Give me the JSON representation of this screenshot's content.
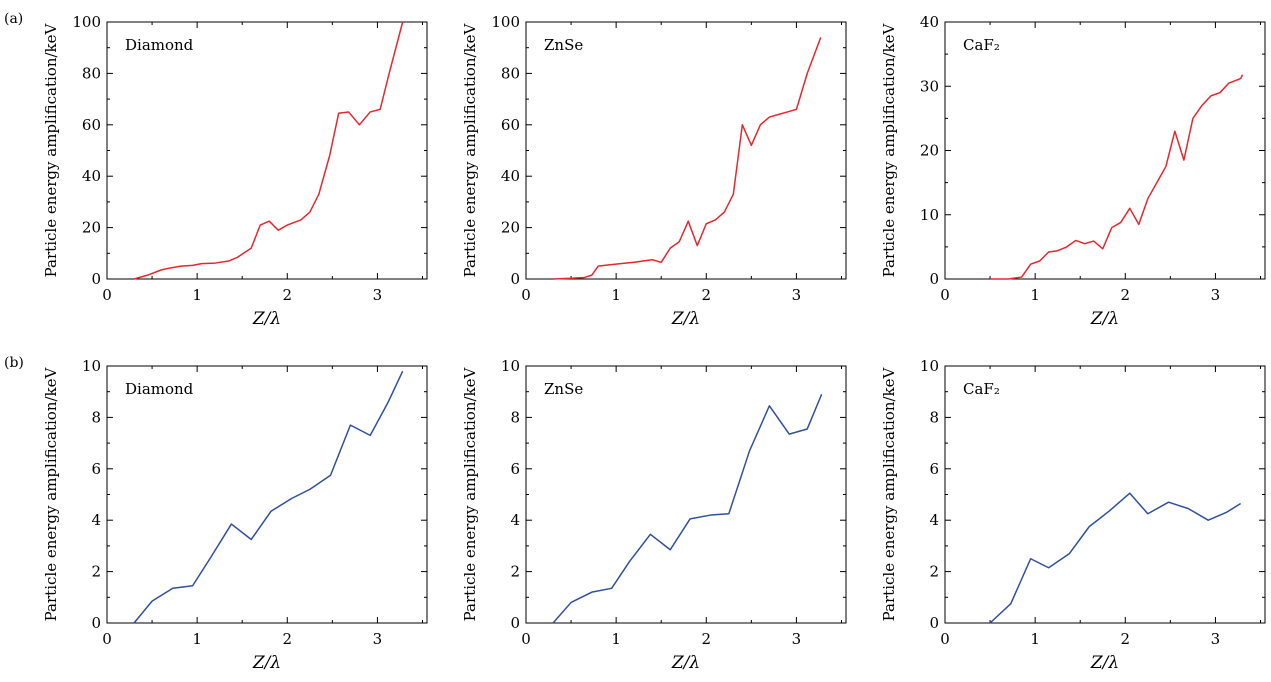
{
  "figure": {
    "row_labels": [
      "(a)",
      "(b)"
    ]
  },
  "colors": {
    "row_a": "#e8262e",
    "row_b": "#2f4f9f",
    "axis": "#000000"
  },
  "chart_data": [
    {
      "type": "line",
      "row": 0,
      "col": 0,
      "panel_label": "Diamond",
      "xlabel": "Z/λ",
      "ylabel": "Particle energy amplification/keV",
      "xlim": [
        0,
        3.55
      ],
      "ylim": [
        0,
        100
      ],
      "xticks": [
        0,
        1,
        2,
        3
      ],
      "yticks": [
        0,
        20,
        40,
        60,
        80,
        100
      ],
      "series": [
        {
          "color": "#e8262e",
          "x": [
            0.3,
            0.45,
            0.6,
            0.7,
            0.82,
            0.95,
            1.05,
            1.2,
            1.35,
            1.45,
            1.6,
            1.7,
            1.8,
            1.9,
            2.0,
            2.15,
            2.25,
            2.35,
            2.47,
            2.57,
            2.68,
            2.8,
            2.92,
            3.03,
            3.13,
            3.28
          ],
          "y": [
            0,
            1.5,
            3.5,
            4.3,
            5.0,
            5.3,
            6.0,
            6.2,
            7.0,
            8.5,
            12.0,
            21.0,
            22.5,
            19.0,
            21.0,
            23.0,
            26.0,
            33.0,
            48.0,
            64.5,
            65.0,
            60.0,
            65.0,
            66.0,
            80.0,
            100.0
          ]
        }
      ]
    },
    {
      "type": "line",
      "row": 0,
      "col": 1,
      "panel_label": "ZnSe",
      "xlabel": "Z/λ",
      "ylabel": "Particle energy amplification/keV",
      "xlim": [
        0,
        3.55
      ],
      "ylim": [
        0,
        100
      ],
      "xticks": [
        0,
        1,
        2,
        3
      ],
      "yticks": [
        0,
        20,
        40,
        60,
        80,
        100
      ],
      "series": [
        {
          "color": "#e8262e",
          "x": [
            0.3,
            0.5,
            0.65,
            0.73,
            0.8,
            0.92,
            1.05,
            1.2,
            1.3,
            1.4,
            1.5,
            1.6,
            1.7,
            1.8,
            1.9,
            2.0,
            2.1,
            2.2,
            2.3,
            2.4,
            2.5,
            2.6,
            2.7,
            2.8,
            2.9,
            3.0,
            3.12,
            3.27
          ],
          "y": [
            0,
            0.3,
            0.6,
            1.5,
            5.0,
            5.5,
            6.0,
            6.5,
            7.0,
            7.5,
            6.5,
            12.0,
            14.5,
            22.5,
            13.0,
            21.5,
            23.0,
            26.0,
            33.0,
            60.0,
            52.0,
            60.0,
            63.0,
            64.0,
            65.0,
            66.0,
            80.0,
            94.0
          ]
        }
      ]
    },
    {
      "type": "line",
      "row": 0,
      "col": 2,
      "panel_label": "CaF₂",
      "xlabel": "Z/λ",
      "ylabel": "Particle energy amplification/keV",
      "xlim": [
        0,
        3.55
      ],
      "ylim": [
        0,
        40
      ],
      "xticks": [
        0,
        1,
        2,
        3
      ],
      "yticks": [
        0,
        10,
        20,
        30,
        40
      ],
      "series": [
        {
          "color": "#e8262e",
          "x": [
            0.5,
            0.7,
            0.85,
            0.95,
            1.05,
            1.15,
            1.25,
            1.35,
            1.45,
            1.55,
            1.65,
            1.75,
            1.85,
            1.95,
            2.05,
            2.15,
            2.25,
            2.35,
            2.45,
            2.55,
            2.65,
            2.75,
            2.85,
            2.95,
            3.05,
            3.15,
            3.28,
            3.3
          ],
          "y": [
            0,
            0,
            0.3,
            2.3,
            2.8,
            4.2,
            4.4,
            5.0,
            6.0,
            5.5,
            5.9,
            4.7,
            8.0,
            8.8,
            11.0,
            8.5,
            12.5,
            15.0,
            17.5,
            23.0,
            18.5,
            25.0,
            27.0,
            28.5,
            29.0,
            30.5,
            31.2,
            31.8
          ]
        }
      ]
    },
    {
      "type": "line",
      "row": 1,
      "col": 0,
      "panel_label": "Diamond",
      "xlabel": "Z/λ",
      "ylabel": "Particle energy amplification/keV",
      "xlim": [
        0,
        3.55
      ],
      "ylim": [
        0,
        10
      ],
      "xticks": [
        0,
        1,
        2,
        3
      ],
      "yticks": [
        0,
        2,
        4,
        6,
        8,
        10
      ],
      "series": [
        {
          "color": "#2f4f9f",
          "x": [
            0.3,
            0.5,
            0.73,
            0.95,
            1.15,
            1.38,
            1.6,
            1.82,
            2.05,
            2.25,
            2.48,
            2.7,
            2.92,
            3.12,
            3.28
          ],
          "y": [
            0,
            0.85,
            1.35,
            1.45,
            2.55,
            3.85,
            3.25,
            4.35,
            4.85,
            5.2,
            5.75,
            7.7,
            7.3,
            8.6,
            9.8
          ]
        }
      ]
    },
    {
      "type": "line",
      "row": 1,
      "col": 1,
      "panel_label": "ZnSe",
      "xlabel": "Z/λ",
      "ylabel": "Particle energy amplification/keV",
      "xlim": [
        0,
        3.55
      ],
      "ylim": [
        0,
        10
      ],
      "xticks": [
        0,
        1,
        2,
        3
      ],
      "yticks": [
        0,
        2,
        4,
        6,
        8,
        10
      ],
      "series": [
        {
          "color": "#2f4f9f",
          "x": [
            0.3,
            0.5,
            0.73,
            0.95,
            1.15,
            1.38,
            1.6,
            1.82,
            2.05,
            2.25,
            2.48,
            2.7,
            2.92,
            3.12,
            3.28
          ],
          "y": [
            0,
            0.8,
            1.2,
            1.35,
            2.4,
            3.45,
            2.85,
            4.05,
            4.2,
            4.25,
            6.7,
            8.45,
            7.35,
            7.55,
            8.9
          ]
        }
      ]
    },
    {
      "type": "line",
      "row": 1,
      "col": 2,
      "panel_label": "CaF₂",
      "xlabel": "Z/λ",
      "ylabel": "Particle energy amplification/keV",
      "xlim": [
        0,
        3.55
      ],
      "ylim": [
        0,
        10
      ],
      "xticks": [
        0,
        1,
        2,
        3
      ],
      "yticks": [
        0,
        2,
        4,
        6,
        8,
        10
      ],
      "series": [
        {
          "color": "#2f4f9f",
          "x": [
            0.5,
            0.73,
            0.95,
            1.15,
            1.38,
            1.6,
            1.82,
            2.05,
            2.25,
            2.48,
            2.7,
            2.92,
            3.12,
            3.28
          ],
          "y": [
            0,
            0.75,
            2.5,
            2.15,
            2.7,
            3.75,
            4.35,
            5.05,
            4.25,
            4.7,
            4.45,
            4.0,
            4.3,
            4.65
          ]
        }
      ]
    }
  ]
}
